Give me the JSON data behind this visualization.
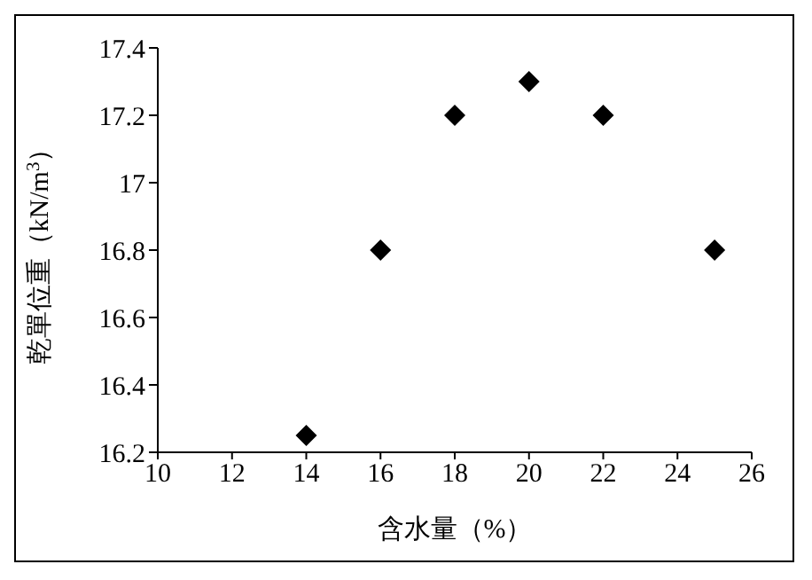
{
  "chart_data": {
    "type": "scatter",
    "xlabel": "含水量（%）",
    "ylabel": "乾單位重（kN/m$^{3}$）",
    "x": [
      14,
      16,
      18,
      20,
      22,
      25
    ],
    "series": [
      {
        "color": "#000000",
        "values": [
          16.25,
          16.8,
          17.2,
          17.3,
          17.2,
          16.8
        ]
      }
    ],
    "xlim": [
      10,
      26
    ],
    "xticks": [
      10,
      12,
      14,
      16,
      18,
      20,
      22,
      24,
      26
    ],
    "ylim": [
      16.2,
      17.4
    ],
    "yticks": [
      16.2,
      16.4,
      16.6,
      16.8,
      17,
      17.2,
      17.4
    ],
    "grid": false,
    "legend": false,
    "marker": "diamond"
  }
}
